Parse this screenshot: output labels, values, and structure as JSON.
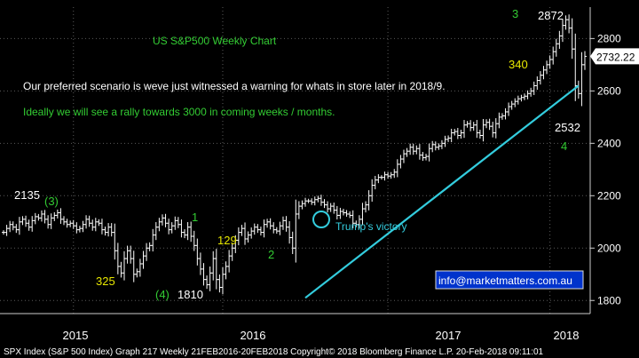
{
  "chart_data": {
    "type": "bar",
    "subtype": "ohlc",
    "title": "US S&P500 Weekly Chart",
    "commentary": [
      "Our preferred scenario is weve just witnessed a warning for whats in store later in 2018/9.",
      "Ideally we will see a rally towards 3000 in coming weeks / months."
    ],
    "ylim": [
      1750,
      2920
    ],
    "yticks": [
      1800,
      2000,
      2200,
      2400,
      2600,
      2800
    ],
    "grid": true,
    "x_labels": [
      "2015",
      "2016",
      "2017",
      "2018"
    ],
    "footer": "SPX Index (S&P 500 Index) Graph 217  Weekly 21FEB2016-20FEB2018  Copyright© 2018 Bloomberg Finance L.P.  20-Feb-2018 09:11:01",
    "last_price": "2732.22",
    "weekly_closes": [
      2060,
      2075,
      2090,
      2080,
      2070,
      2100,
      2110,
      2095,
      2080,
      2105,
      2120,
      2115,
      2130,
      2110,
      2090,
      2115,
      2125,
      2135,
      2110,
      2100,
      2090,
      2095,
      2085,
      2070,
      2075,
      2090,
      2110,
      2095,
      2080,
      2100,
      2095,
      2070,
      2060,
      2080,
      2060,
      1990,
      1930,
      1905,
      1960,
      1990,
      1960,
      1900,
      1910,
      1940,
      1970,
      2000,
      2010,
      2050,
      2080,
      2100,
      2115,
      2095,
      2070,
      2085,
      2105,
      2090,
      2060,
      2050,
      2080,
      2045,
      2010,
      1960,
      1920,
      1880,
      1860,
      1905,
      1960,
      1880,
      1850,
      1900,
      1930,
      1970,
      2000,
      2030,
      2060,
      2075,
      2035,
      2050,
      2065,
      2080,
      2070,
      2060,
      2090,
      2100,
      2085,
      2070,
      2065,
      2085,
      2105,
      2080,
      2040,
      2000,
      2130,
      2160,
      2170,
      2180,
      2180,
      2175,
      2185,
      2190,
      2175,
      2165,
      2150,
      2160,
      2145,
      2125,
      2140,
      2135,
      2130,
      2125,
      2095,
      2090,
      2110,
      2150,
      2165,
      2200,
      2240,
      2260,
      2270,
      2270,
      2280,
      2275,
      2280,
      2290,
      2320,
      2340,
      2360,
      2370,
      2385,
      2370,
      2380,
      2355,
      2345,
      2350,
      2380,
      2395,
      2385,
      2390,
      2400,
      2415,
      2420,
      2440,
      2445,
      2430,
      2440,
      2470,
      2475,
      2460,
      2470,
      2440,
      2430,
      2470,
      2480,
      2465,
      2440,
      2475,
      2500,
      2505,
      2520,
      2540,
      2550,
      2560,
      2570,
      2575,
      2580,
      2590,
      2600,
      2620,
      2640,
      2660,
      2680,
      2700,
      2720,
      2750,
      2780,
      2810,
      2850,
      2872,
      2840,
      2760,
      2620,
      2590,
      2700,
      2732
    ],
    "annotations": [
      {
        "text": "2135",
        "value": 2135,
        "color": "#ffffff"
      },
      {
        "text": "(3)",
        "color": "#33cc33"
      },
      {
        "text": "325",
        "color": "#e8e800"
      },
      {
        "text": "(4)",
        "color": "#33cc33"
      },
      {
        "text": "1810",
        "value": 1810,
        "color": "#ffffff"
      },
      {
        "text": "1",
        "color": "#33cc33"
      },
      {
        "text": "129",
        "color": "#e8e800"
      },
      {
        "text": "2",
        "color": "#33cc33"
      },
      {
        "text": "Trump's victory",
        "color": "#33ccdd"
      },
      {
        "text": "3",
        "color": "#33cc33"
      },
      {
        "text": "2872",
        "value": 2872,
        "color": "#ffffff"
      },
      {
        "text": "340",
        "color": "#e8e800"
      },
      {
        "text": "2532",
        "value": 2532,
        "color": "#ffffff"
      },
      {
        "text": "4",
        "color": "#33cc33"
      }
    ],
    "trendline": {
      "from": {
        "week": 95,
        "value": 1810
      },
      "to": {
        "week": 181,
        "value": 2620
      },
      "color": "#33ccdd"
    },
    "website": "info@marketmatters.com.au"
  }
}
